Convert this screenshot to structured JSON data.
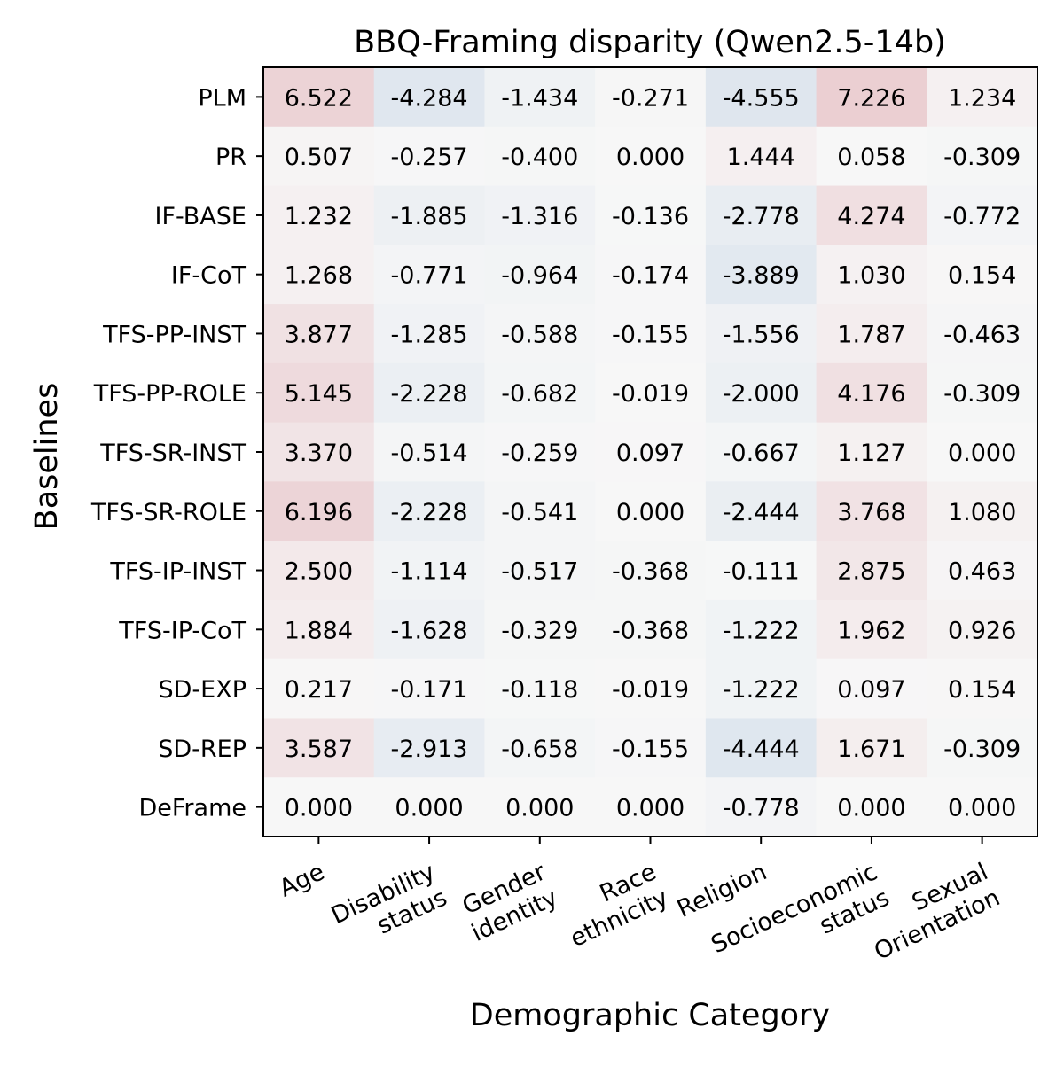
{
  "chart_data": {
    "type": "heatmap",
    "title": "BBQ-Framing disparity (Qwen2.5-14b)",
    "xlabel": "Demographic Category",
    "ylabel": "Baselines",
    "columns": [
      [
        "Age"
      ],
      [
        "Disability",
        "status"
      ],
      [
        "Gender",
        "identity"
      ],
      [
        "Race",
        "ethnicity"
      ],
      [
        "Religion"
      ],
      [
        "Socioeconomic",
        "status"
      ],
      [
        "Sexual",
        "Orientation"
      ]
    ],
    "rows": [
      "PLM",
      "PR",
      "IF-BASE",
      "IF-CoT",
      "TFS-PP-INST",
      "TFS-PP-ROLE",
      "TFS-SR-INST",
      "TFS-SR-ROLE",
      "TFS-IP-INST",
      "TFS-IP-CoT",
      "SD-EXP",
      "SD-REP",
      "DeFrame"
    ],
    "values": [
      [
        "6.522",
        "-4.284",
        "-1.434",
        "-0.271",
        "-4.555",
        "7.226",
        "1.234"
      ],
      [
        "0.507",
        "-0.257",
        "-0.400",
        "0.000",
        "1.444",
        "0.058",
        "-0.309"
      ],
      [
        "1.232",
        "-1.885",
        "-1.316",
        "-0.136",
        "-2.778",
        "4.274",
        "-0.772"
      ],
      [
        "1.268",
        "-0.771",
        "-0.964",
        "-0.174",
        "-3.889",
        "1.030",
        "0.154"
      ],
      [
        "3.877",
        "-1.285",
        "-0.588",
        "-0.155",
        "-1.556",
        "1.787",
        "-0.463"
      ],
      [
        "5.145",
        "-2.228",
        "-0.682",
        "-0.019",
        "-2.000",
        "4.176",
        "-0.309"
      ],
      [
        "3.370",
        "-0.514",
        "-0.259",
        "0.097",
        "-0.667",
        "1.127",
        "0.000"
      ],
      [
        "6.196",
        "-2.228",
        "-0.541",
        "0.000",
        "-2.444",
        "3.768",
        "1.080"
      ],
      [
        "2.500",
        "-1.114",
        "-0.517",
        "-0.368",
        "-0.111",
        "2.875",
        "0.463"
      ],
      [
        "1.884",
        "-1.628",
        "-0.329",
        "-0.368",
        "-1.222",
        "1.962",
        "0.926"
      ],
      [
        "0.217",
        "-0.171",
        "-0.118",
        "-0.019",
        "-1.222",
        "0.097",
        "0.154"
      ],
      [
        "3.587",
        "-2.913",
        "-0.658",
        "-0.155",
        "-4.444",
        "1.671",
        "-0.309"
      ],
      [
        "0.000",
        "0.000",
        "0.000",
        "0.000",
        "-0.778",
        "0.000",
        "0.000"
      ]
    ],
    "color_scale": {
      "min": -40,
      "max": 40,
      "neutral_color": "#f7f7f7",
      "positive_color": "#b2182b",
      "negative_color": "#2166ac"
    },
    "colorbar": false,
    "grid": false
  }
}
